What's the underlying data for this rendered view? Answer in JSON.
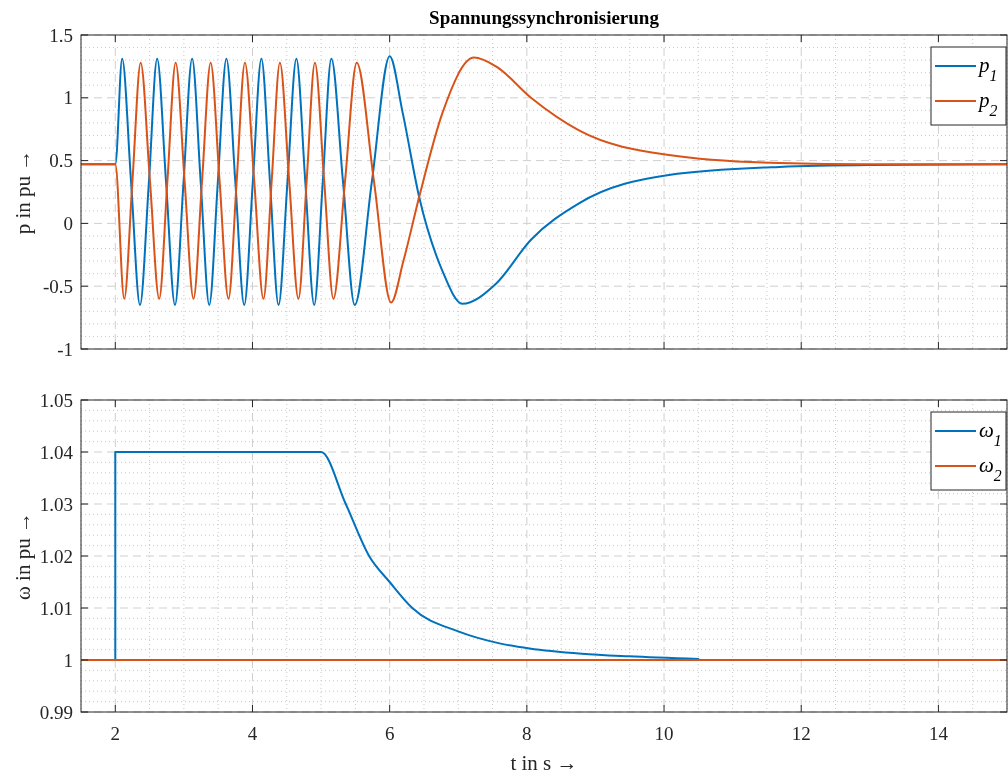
{
  "chart_data": [
    {
      "type": "line",
      "title": "Spannungssynchronisierung",
      "ylabel": "p in pu →",
      "xlim": [
        1.5,
        15
      ],
      "xticks": [
        2,
        4,
        6,
        8,
        10,
        12,
        14
      ],
      "ylim": [
        -1,
        1.5
      ],
      "yticks": [
        -1,
        -0.5,
        0,
        0.5,
        1,
        1.5
      ],
      "grid": true,
      "legend": "top right",
      "tick_labels": "y",
      "series": [
        {
          "name": "p$_{1}$",
          "color": "#0072bd",
          "x": [
            1.5,
            2,
            2.1,
            2.23,
            2.36,
            2.49,
            2.61,
            2.74,
            2.87,
            2.995,
            3.12,
            3.245,
            3.37,
            3.495,
            3.62,
            3.75,
            3.88,
            4.005,
            4.13,
            4.255,
            4.38,
            4.51,
            4.64,
            4.77,
            4.9,
            5.025,
            5.15,
            5.32,
            5.49,
            5.74,
            6,
            6.19,
            6.43,
            6.77,
            7.06,
            7.55,
            8.06,
            8.76,
            10.07,
            11.68,
            13,
            15
          ],
          "values": [
            0.47,
            0.47,
            1.31,
            0.33,
            -0.65,
            0.33,
            1.31,
            0.33,
            -0.65,
            0.33,
            1.31,
            0.33,
            -0.65,
            0.33,
            1.31,
            0.33,
            -0.65,
            0.33,
            1.31,
            0.33,
            -0.65,
            0.33,
            1.31,
            0.33,
            -0.65,
            0.33,
            1.31,
            0.33,
            -0.65,
            0.33,
            1.33,
            0.88,
            0.21,
            -0.38,
            -0.64,
            -0.48,
            -0.13,
            0.16,
            0.385,
            0.45,
            0.465,
            0.47
          ]
        },
        {
          "name": "p$_{2}$",
          "color": "#d95319",
          "x": [
            1.5,
            2,
            2.13,
            2.25,
            2.37,
            2.505,
            2.64,
            2.76,
            2.88,
            3.01,
            3.14,
            3.265,
            3.39,
            3.52,
            3.65,
            3.77,
            3.89,
            4.025,
            4.16,
            4.28,
            4.4,
            4.535,
            4.67,
            4.79,
            4.91,
            5.045,
            5.18,
            5.35,
            5.52,
            5.77,
            6.02,
            6.2,
            6.43,
            6.77,
            7.23,
            7.55,
            8.06,
            8.76,
            10.07,
            11.68,
            13,
            15
          ],
          "values": [
            0.47,
            0.47,
            -0.6,
            0.34,
            1.28,
            0.34,
            -0.6,
            0.34,
            1.28,
            0.34,
            -0.6,
            0.34,
            1.28,
            0.34,
            -0.6,
            0.34,
            1.28,
            0.34,
            -0.6,
            0.34,
            1.28,
            0.34,
            -0.6,
            0.34,
            1.28,
            0.34,
            -0.6,
            0.34,
            1.28,
            0.34,
            -0.63,
            -0.3,
            0.21,
            0.88,
            1.32,
            1.25,
            1.0,
            0.74,
            0.545,
            0.48,
            0.47,
            0.47
          ]
        }
      ]
    },
    {
      "type": "line",
      "xlabel": "t in s →",
      "ylabel": "ω in pu →",
      "xlim": [
        1.5,
        15
      ],
      "xticks": [
        2,
        4,
        6,
        8,
        10,
        12,
        14
      ],
      "ylim": [
        0.99,
        1.05
      ],
      "yticks": [
        0.99,
        1,
        1.01,
        1.02,
        1.03,
        1.04,
        1.05
      ],
      "grid": true,
      "legend": "top right",
      "series": [
        {
          "name": "ω$_{1}$",
          "color": "#0072bd",
          "x": [
            1.5,
            2,
            2,
            5,
            5.36,
            5.7,
            6,
            6.33,
            7,
            7.6,
            8.04,
            8.8,
            9.49,
            10.5
          ],
          "values": [
            1,
            1,
            1.04,
            1.04,
            1.03,
            1.02,
            1.015,
            1.01,
            1.0055,
            1.0032,
            1.0022,
            1.0012,
            1.0007,
            1.0002
          ]
        },
        {
          "name": "ω$_{2}$",
          "color": "#d95319",
          "x": [
            1.5,
            15
          ],
          "values": [
            1,
            1
          ]
        }
      ]
    }
  ]
}
